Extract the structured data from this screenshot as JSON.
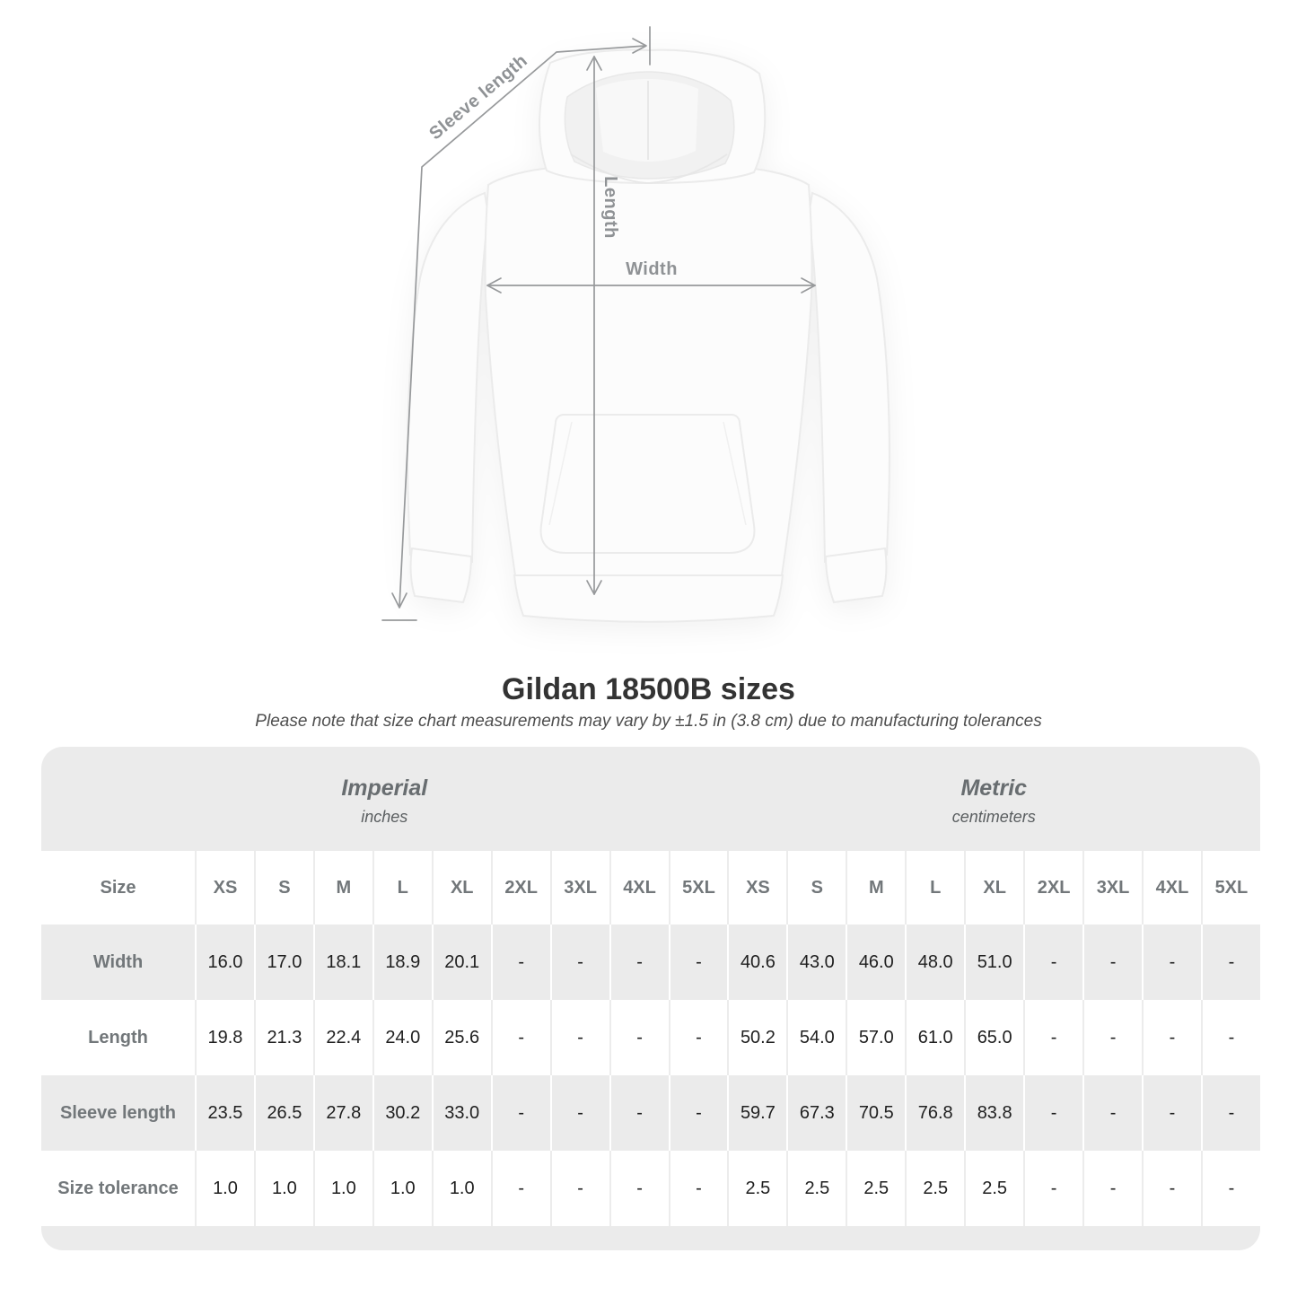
{
  "diagram": {
    "sleeve_length_label": "Sleeve length",
    "length_label": "Length",
    "width_label": "Width"
  },
  "title": "Gildan 18500B sizes",
  "subtitle": "Please note that size chart measurements may vary by ±1.5 in (3.8 cm) due to manufacturing tolerances",
  "table": {
    "size_label": "Size",
    "unit_groups": [
      {
        "name": "Imperial",
        "unit": "inches"
      },
      {
        "name": "Metric",
        "unit": "centimeters"
      }
    ],
    "sizes": [
      "XS",
      "S",
      "M",
      "L",
      "XL",
      "2XL",
      "3XL",
      "4XL",
      "5XL"
    ],
    "rows": [
      {
        "label": "Width",
        "imperial": [
          "16.0",
          "17.0",
          "18.1",
          "18.9",
          "20.1",
          "-",
          "-",
          "-",
          "-"
        ],
        "metric": [
          "40.6",
          "43.0",
          "46.0",
          "48.0",
          "51.0",
          "-",
          "-",
          "-",
          "-"
        ]
      },
      {
        "label": "Length",
        "imperial": [
          "19.8",
          "21.3",
          "22.4",
          "24.0",
          "25.6",
          "-",
          "-",
          "-",
          "-"
        ],
        "metric": [
          "50.2",
          "54.0",
          "57.0",
          "61.0",
          "65.0",
          "-",
          "-",
          "-",
          "-"
        ]
      },
      {
        "label": "Sleeve length",
        "imperial": [
          "23.5",
          "26.5",
          "27.8",
          "30.2",
          "33.0",
          "-",
          "-",
          "-",
          "-"
        ],
        "metric": [
          "59.7",
          "67.3",
          "70.5",
          "76.8",
          "83.8",
          "-",
          "-",
          "-",
          "-"
        ]
      },
      {
        "label": "Size tolerance",
        "imperial": [
          "1.0",
          "1.0",
          "1.0",
          "1.0",
          "1.0",
          "-",
          "-",
          "-",
          "-"
        ],
        "metric": [
          "2.5",
          "2.5",
          "2.5",
          "2.5",
          "2.5",
          "-",
          "-",
          "-",
          "-"
        ]
      }
    ]
  },
  "colors": {
    "panel_bg": "#ebebeb",
    "row_gray": "#ebebeb",
    "measure_line": "#97999b",
    "measure_label": "#8f9295",
    "head_gray": "#72777a",
    "value_dark": "#1f1f1f",
    "title_dark": "#333333"
  }
}
